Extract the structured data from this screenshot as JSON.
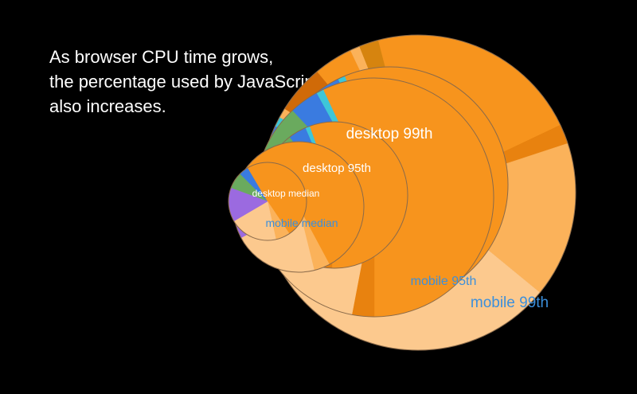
{
  "headline": {
    "lines": [
      "As browser CPU time grows,",
      "the percentage used by JavaScript",
      "also increases."
    ]
  },
  "colors": {
    "background": "#000000",
    "desktop_label": "#ffffff",
    "mobile_label": "#3b8fdc",
    "outline": "#8a6a4a"
  },
  "chart_data": {
    "type": "pie",
    "title": "",
    "pies": [
      {
        "name": "mobile median",
        "label_color": "#3b8fdc",
        "slices": [
          {
            "value": 3,
            "color": "#3a7be0"
          },
          {
            "value": 2,
            "color": "#3ec6d8"
          },
          {
            "value": 58,
            "color": "#f7941d"
          },
          {
            "value": 4,
            "color": "#fbb25a"
          },
          {
            "value": 21,
            "color": "#fcc98e"
          },
          {
            "value": 12,
            "color": "#9b6ae0"
          }
        ]
      },
      {
        "name": "desktop median",
        "label_color": "#ffffff",
        "slices": [
          {
            "value": 7,
            "color": "#6aaa5e"
          },
          {
            "value": 4,
            "color": "#3a7be0"
          },
          {
            "value": 49,
            "color": "#f7941d"
          },
          {
            "value": 6,
            "color": "#fbb25a"
          },
          {
            "value": 20,
            "color": "#fcc98e"
          },
          {
            "value": 14,
            "color": "#9b6ae0"
          }
        ]
      },
      {
        "name": "desktop 95th",
        "label_color": "#ffffff",
        "slices": [
          {
            "value": 9,
            "color": "#6aaa5e"
          },
          {
            "value": 4,
            "color": "#3a7be0"
          },
          {
            "value": 1,
            "color": "#3ec6d8"
          },
          {
            "value": 56,
            "color": "#f7941d"
          },
          {
            "value": 3,
            "color": "#e8820f"
          },
          {
            "value": 20,
            "color": "#fcc98e"
          },
          {
            "value": 7,
            "color": "#8f5fe0"
          }
        ]
      },
      {
        "name": "mobile 95th",
        "label_color": "#3b8fdc",
        "slices": [
          {
            "value": 8,
            "color": "#6aaa5e"
          },
          {
            "value": 4,
            "color": "#3a7be0"
          },
          {
            "value": 1,
            "color": "#3ec6d8"
          },
          {
            "value": 57,
            "color": "#f7941d"
          },
          {
            "value": 3,
            "color": "#e8820f"
          },
          {
            "value": 22,
            "color": "#fcc98e"
          },
          {
            "value": 5,
            "color": "#8f5fe0"
          }
        ]
      },
      {
        "name": "desktop 99th",
        "label_color": "#ffffff",
        "slices": [
          {
            "value": 8,
            "color": "#6aaa5e"
          },
          {
            "value": 5,
            "color": "#3a7be0"
          },
          {
            "value": 1,
            "color": "#3ec6d8"
          },
          {
            "value": 58,
            "color": "#f7941d"
          },
          {
            "value": 3,
            "color": "#e8820f"
          },
          {
            "value": 21,
            "color": "#fcc98e"
          },
          {
            "value": 4,
            "color": "#8f5fe0"
          }
        ]
      },
      {
        "name": "mobile 99th",
        "label_color": "#3b8fdc",
        "slices": [
          {
            "value": 1,
            "color": "#6aaa5e"
          },
          {
            "value": 4,
            "color": "#3a7be0"
          },
          {
            "value": 1,
            "color": "#3ec6d8"
          },
          {
            "value": 1,
            "color": "#fbb25a"
          },
          {
            "value": 5,
            "color": "#d06a08"
          },
          {
            "value": 4,
            "color": "#f7941d"
          },
          {
            "value": 1,
            "color": "#fbb25a"
          },
          {
            "value": 2,
            "color": "#d6840f"
          },
          {
            "value": 22,
            "color": "#f7941d"
          },
          {
            "value": 2,
            "color": "#e8820f"
          },
          {
            "value": 16,
            "color": "#fbb25a"
          },
          {
            "value": 39,
            "color": "#fcc98e"
          },
          {
            "value": 1,
            "color": "#9b6ae0"
          },
          {
            "value": 1,
            "color": "#5a3fc8"
          }
        ]
      }
    ]
  }
}
